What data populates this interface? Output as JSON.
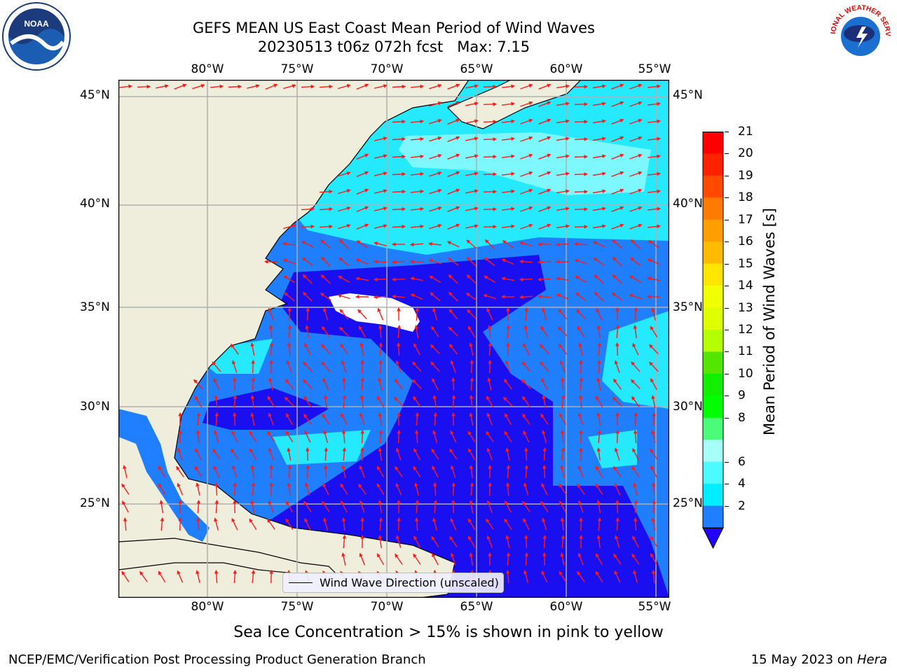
{
  "title": {
    "line1": "GEFS MEAN US East Coast Mean Period of Wind Waves",
    "line2": "20230513 t06z 072h fcst   Max: 7.15"
  },
  "logos": {
    "left": "NOAA",
    "right": "NATIONAL WEATHER SERVICE"
  },
  "map": {
    "lon_labels": [
      "80°W",
      "75°W",
      "70°W",
      "65°W",
      "60°W",
      "55°W"
    ],
    "lat_labels": [
      "45°N",
      "40°N",
      "35°N",
      "30°N",
      "25°N"
    ],
    "extent": {
      "lon": [
        -85,
        -54.2
      ],
      "lat": [
        20.5,
        45.8
      ]
    },
    "legend_label": "Wind Wave Direction (unscaled)",
    "colors": {
      "land": "#efeedc",
      "ocean_2_4": "#1f7fff",
      "ocean_lt2": "#1a0ff0",
      "ocean_4_6": "#24e9ff",
      "ocean_6_8": "#7ef8ff",
      "arrow": "#ff1a1a",
      "grid": "#b0b0b0"
    }
  },
  "colorbar": {
    "title": "Mean Period of Wind Waves [s]",
    "levels": [
      "21",
      "20",
      "19",
      "18",
      "17",
      "16",
      "15",
      "14",
      "13",
      "12",
      "11",
      "10",
      "9",
      "8",
      "6",
      "4",
      "2"
    ],
    "colors": [
      "#ff0000",
      "#ff2200",
      "#ff4a00",
      "#ff7a00",
      "#ff9e00",
      "#ffbb00",
      "#ffe600",
      "#f2ff00",
      "#dfff00",
      "#b6ff00",
      "#53e600",
      "#12ee00",
      "#00ff00",
      "#4dfb7a",
      "#a6fff8",
      "#4cfbff",
      "#00eeff",
      "#1f7fff"
    ],
    "extend_color": "#2200ff"
  },
  "footer": {
    "note": "Sea Ice Concentration > 15% is shown in pink to yellow",
    "left": "NCEP/EMC/Verification Post Processing Product Generation Branch",
    "right_text": "15 May 2023 on ",
    "right_italic": "Hera"
  }
}
